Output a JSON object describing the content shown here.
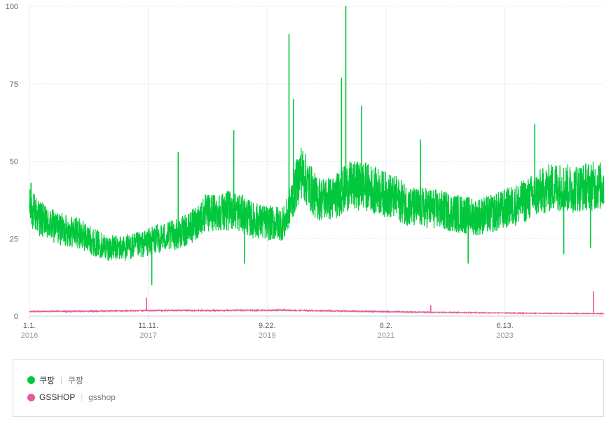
{
  "chart_data": {
    "type": "line",
    "ylim": [
      0,
      100
    ],
    "y_ticks": [
      "0",
      "25",
      "50",
      "75",
      "100"
    ],
    "x_ticks": [
      {
        "date": "2016-01-01",
        "label": "1.1.",
        "year": "2016"
      },
      {
        "date": "2017-11-11",
        "label": "11.11.",
        "year": "2017"
      },
      {
        "date": "2019-09-22",
        "label": "9.22.",
        "year": "2019"
      },
      {
        "date": "2021-08-02",
        "label": "8.2.",
        "year": "2021"
      },
      {
        "date": "2023-06-13",
        "label": "6.13.",
        "year": "2023"
      }
    ],
    "x_range": [
      "2016-01-01",
      "2024-12-31"
    ],
    "grid": true,
    "legend_position": "bottom",
    "series": [
      {
        "name": "쿠팡",
        "term": "쿠팡",
        "color": "#00c73c",
        "x": [
          "2016-01-01",
          "2016-04-01",
          "2016-07-01",
          "2016-10-01",
          "2017-01-01",
          "2017-04-01",
          "2017-07-01",
          "2017-10-01",
          "2018-01-01",
          "2018-04-01",
          "2018-07-01",
          "2018-10-01",
          "2019-01-01",
          "2019-04-01",
          "2019-07-01",
          "2019-10-01",
          "2020-01-01",
          "2020-04-01",
          "2020-07-01",
          "2020-10-01",
          "2021-01-01",
          "2021-04-01",
          "2021-07-01",
          "2021-10-01",
          "2022-01-01",
          "2022-04-01",
          "2022-07-01",
          "2022-10-01",
          "2023-01-01",
          "2023-04-01",
          "2023-07-01",
          "2023-10-01",
          "2024-01-01",
          "2024-04-01",
          "2024-07-01",
          "2024-10-01",
          "2024-12-31"
        ],
        "values": [
          35,
          30,
          28,
          27,
          24,
          22,
          22,
          23,
          25,
          26,
          28,
          33,
          34,
          34,
          31,
          30,
          30,
          47,
          38,
          38,
          42,
          42,
          40,
          38,
          35,
          35,
          34,
          33,
          32,
          33,
          35,
          37,
          40,
          42,
          41,
          42,
          42
        ],
        "spikes": [
          {
            "x": "2016-01-10",
            "y": 43
          },
          {
            "x": "2017-12-01",
            "y": 10
          },
          {
            "x": "2018-05-01",
            "y": 53
          },
          {
            "x": "2019-03-15",
            "y": 60
          },
          {
            "x": "2019-05-15",
            "y": 17
          },
          {
            "x": "2020-01-25",
            "y": 91
          },
          {
            "x": "2020-02-20",
            "y": 70
          },
          {
            "x": "2020-11-20",
            "y": 77
          },
          {
            "x": "2020-12-15",
            "y": 100
          },
          {
            "x": "2021-03-15",
            "y": 68
          },
          {
            "x": "2022-02-15",
            "y": 57
          },
          {
            "x": "2022-11-15",
            "y": 17
          },
          {
            "x": "2023-12-01",
            "y": 62
          },
          {
            "x": "2024-05-15",
            "y": 20
          },
          {
            "x": "2024-10-15",
            "y": 22
          }
        ]
      },
      {
        "name": "GSSHOP",
        "term": "gsshop",
        "color": "#e55a9c",
        "x": [
          "2016-01-01",
          "2017-01-01",
          "2018-01-01",
          "2019-01-01",
          "2020-01-01",
          "2021-01-01",
          "2022-01-01",
          "2023-01-01",
          "2024-01-01",
          "2024-12-31"
        ],
        "values": [
          1.5,
          1.6,
          1.8,
          1.8,
          1.9,
          1.6,
          1.3,
          1.1,
          0.9,
          0.8
        ],
        "spikes": [
          {
            "x": "2017-11-01",
            "y": 6
          },
          {
            "x": "2022-04-15",
            "y": 3.5
          },
          {
            "x": "2024-11-01",
            "y": 8
          }
        ]
      }
    ]
  },
  "legend": {
    "items": [
      {
        "name": "쿠팡",
        "term": "쿠팡",
        "color": "#00c73c"
      },
      {
        "name": "GSSHOP",
        "term": "gsshop",
        "color": "#e55a9c"
      }
    ],
    "separator": "|"
  }
}
